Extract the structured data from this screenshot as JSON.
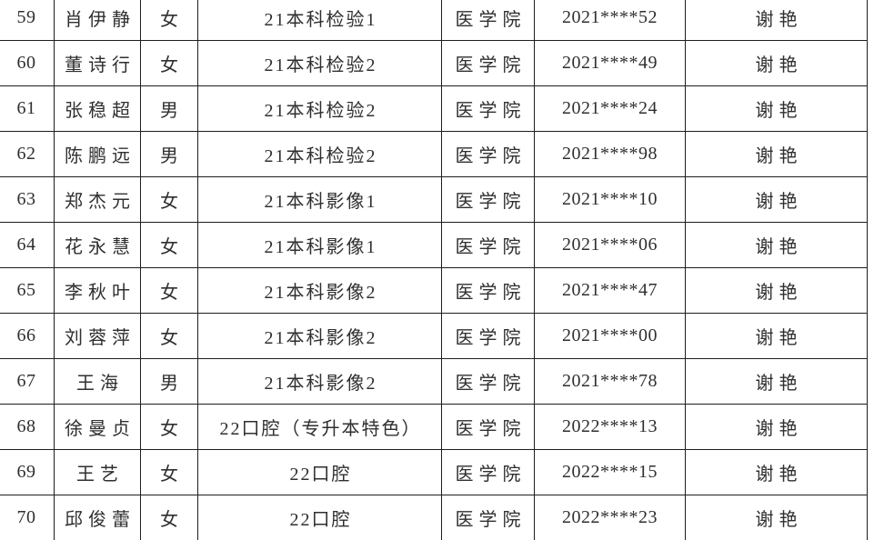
{
  "page": {
    "background_color": "#ffffff",
    "grid_line_color": "#1e1e1e",
    "text_color": "#2f2f2f"
  },
  "table": {
    "visible_row_range": "59-70",
    "rows": [
      {
        "no": "59",
        "name": "肖伊静",
        "gender": "女",
        "class_name": "21本科检验1",
        "college": "医学院",
        "student_id": "2021****52",
        "teacher": "谢艳"
      },
      {
        "no": "60",
        "name": "董诗行",
        "gender": "女",
        "class_name": "21本科检验2",
        "college": "医学院",
        "student_id": "2021****49",
        "teacher": "谢艳"
      },
      {
        "no": "61",
        "name": "张稳超",
        "gender": "男",
        "class_name": "21本科检验2",
        "college": "医学院",
        "student_id": "2021****24",
        "teacher": "谢艳"
      },
      {
        "no": "62",
        "name": "陈鹏远",
        "gender": "男",
        "class_name": "21本科检验2",
        "college": "医学院",
        "student_id": "2021****98",
        "teacher": "谢艳"
      },
      {
        "no": "63",
        "name": "郑杰元",
        "gender": "女",
        "class_name": "21本科影像1",
        "college": "医学院",
        "student_id": "2021****10",
        "teacher": "谢艳"
      },
      {
        "no": "64",
        "name": "花永慧",
        "gender": "女",
        "class_name": "21本科影像1",
        "college": "医学院",
        "student_id": "2021****06",
        "teacher": "谢艳"
      },
      {
        "no": "65",
        "name": "李秋叶",
        "gender": "女",
        "class_name": "21本科影像2",
        "college": "医学院",
        "student_id": "2021****47",
        "teacher": "谢艳"
      },
      {
        "no": "66",
        "name": "刘蓉萍",
        "gender": "女",
        "class_name": "21本科影像2",
        "college": "医学院",
        "student_id": "2021****00",
        "teacher": "谢艳"
      },
      {
        "no": "67",
        "name": "王海",
        "gender": "男",
        "class_name": "21本科影像2",
        "college": "医学院",
        "student_id": "2021****78",
        "teacher": "谢艳"
      },
      {
        "no": "68",
        "name": "徐曼贞",
        "gender": "女",
        "class_name": "22口腔（专升本特色）",
        "college": "医学院",
        "student_id": "2022****13",
        "teacher": "谢艳"
      },
      {
        "no": "69",
        "name": "王艺",
        "gender": "女",
        "class_name": "22口腔",
        "college": "医学院",
        "student_id": "2022****15",
        "teacher": "谢艳"
      },
      {
        "no": "70",
        "name": "邱俊蕾",
        "gender": "女",
        "class_name": "22口腔",
        "college": "医学院",
        "student_id": "2022****23",
        "teacher": "谢艳"
      }
    ]
  }
}
